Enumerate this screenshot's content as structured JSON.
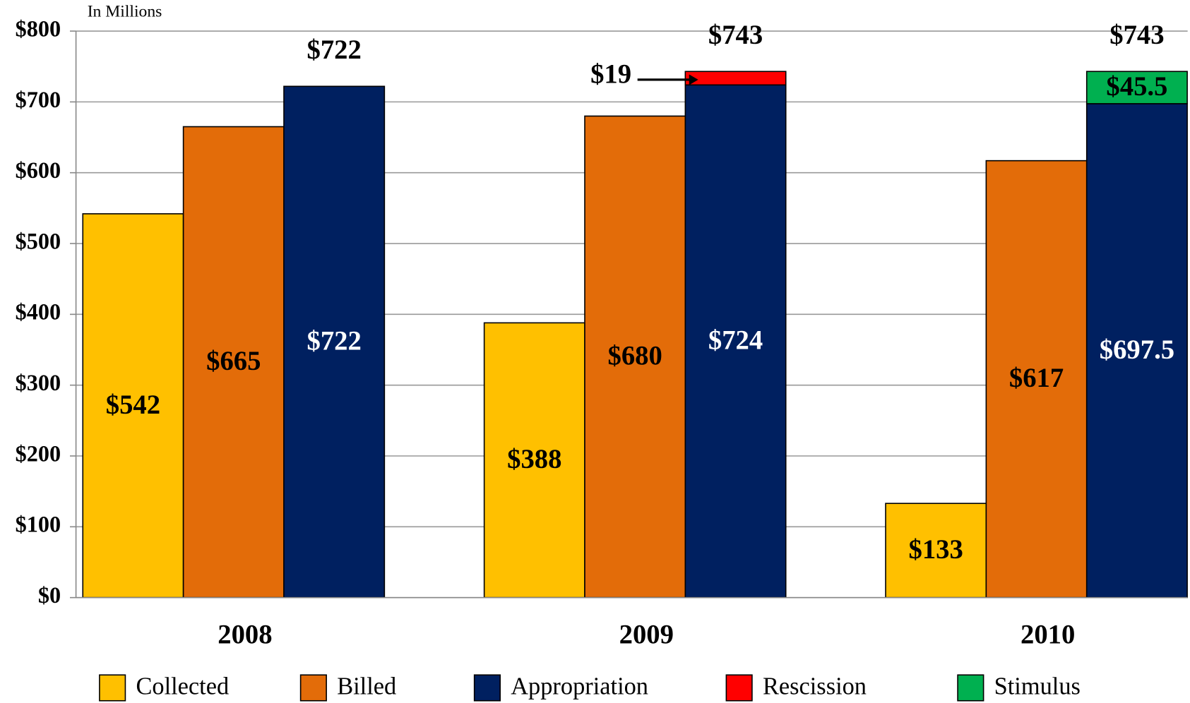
{
  "chart_data": {
    "type": "bar",
    "axis_note": "In Millions",
    "categories": [
      "2008",
      "2009",
      "2010"
    ],
    "series": [
      {
        "name": "Collected",
        "color": "#FFC000",
        "values": [
          542,
          388,
          133
        ],
        "value_labels": [
          "$542",
          "$388",
          "$133"
        ]
      },
      {
        "name": "Billed",
        "color": "#E36C09",
        "values": [
          665,
          680,
          617
        ],
        "value_labels": [
          "$665",
          "$680",
          "$617"
        ]
      },
      {
        "name": "Appropriation",
        "color": "#002060",
        "values": [
          722,
          724,
          697.5
        ],
        "value_labels": [
          "$722",
          "$724",
          "$697.5"
        ]
      },
      {
        "name": "Rescission",
        "color": "#FF0000",
        "values": [
          null,
          19,
          null
        ],
        "value_labels": [
          null,
          "$19",
          null
        ]
      },
      {
        "name": "Stimulus",
        "color": "#00B050",
        "values": [
          null,
          null,
          45.5
        ],
        "value_labels": [
          null,
          null,
          "$45.5"
        ]
      }
    ],
    "totals": {
      "values": [
        722,
        743,
        743
      ],
      "value_labels": [
        "$722",
        "$743",
        "$743"
      ]
    },
    "ylim": [
      0,
      800
    ],
    "yticks": [
      {
        "value": 0,
        "label": "$0"
      },
      {
        "value": 100,
        "label": "$100"
      },
      {
        "value": 200,
        "label": "$200"
      },
      {
        "value": 300,
        "label": "$300"
      },
      {
        "value": 400,
        "label": "$400"
      },
      {
        "value": 500,
        "label": "$500"
      },
      {
        "value": 600,
        "label": "$600"
      },
      {
        "value": 700,
        "label": "$700"
      },
      {
        "value": 800,
        "label": "$800"
      }
    ],
    "grid": true
  }
}
